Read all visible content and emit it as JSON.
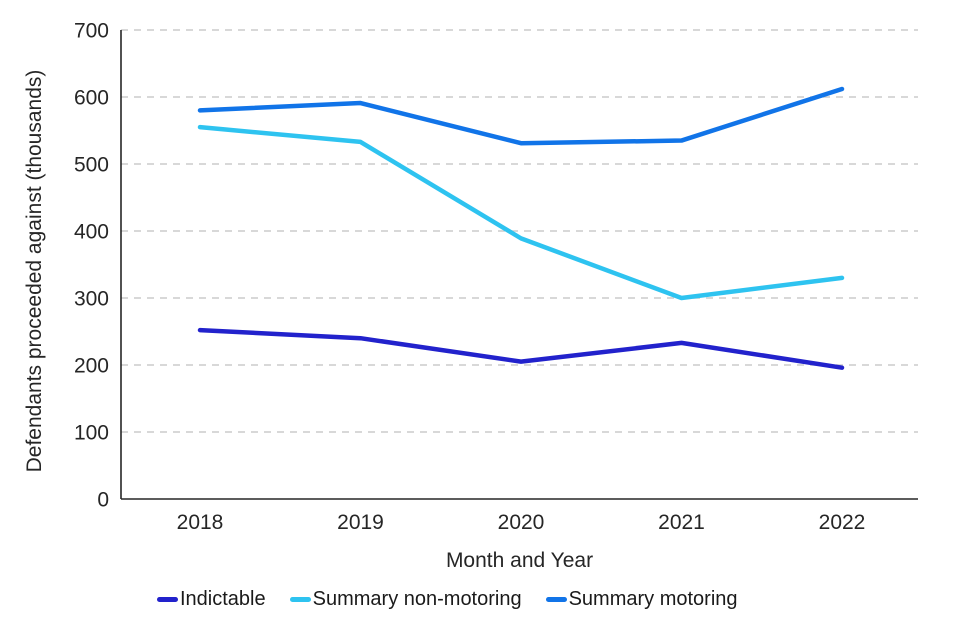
{
  "chart_data": {
    "type": "line",
    "title": "",
    "xlabel": "Month and Year",
    "ylabel": "Defendants proceeded against (thousands)",
    "categories": [
      "2018",
      "2019",
      "2020",
      "2021",
      "2022"
    ],
    "series": [
      {
        "name": "Indictable",
        "color": "#2222cc",
        "values": [
          252,
          240,
          205,
          233,
          196
        ]
      },
      {
        "name": "Summary non-motoring",
        "color": "#2ec3f0",
        "values": [
          555,
          533,
          389,
          300,
          330
        ]
      },
      {
        "name": "Summary motoring",
        "color": "#1174e8",
        "values": [
          580,
          591,
          531,
          535,
          612
        ]
      }
    ],
    "ylim": [
      0,
      700
    ],
    "yticks": [
      0,
      100,
      200,
      300,
      400,
      500,
      600,
      700
    ],
    "grid": "horizontal-dashed",
    "grid_color": "#cccccc",
    "axis_color": "#262626",
    "legend_position": "bottom"
  }
}
